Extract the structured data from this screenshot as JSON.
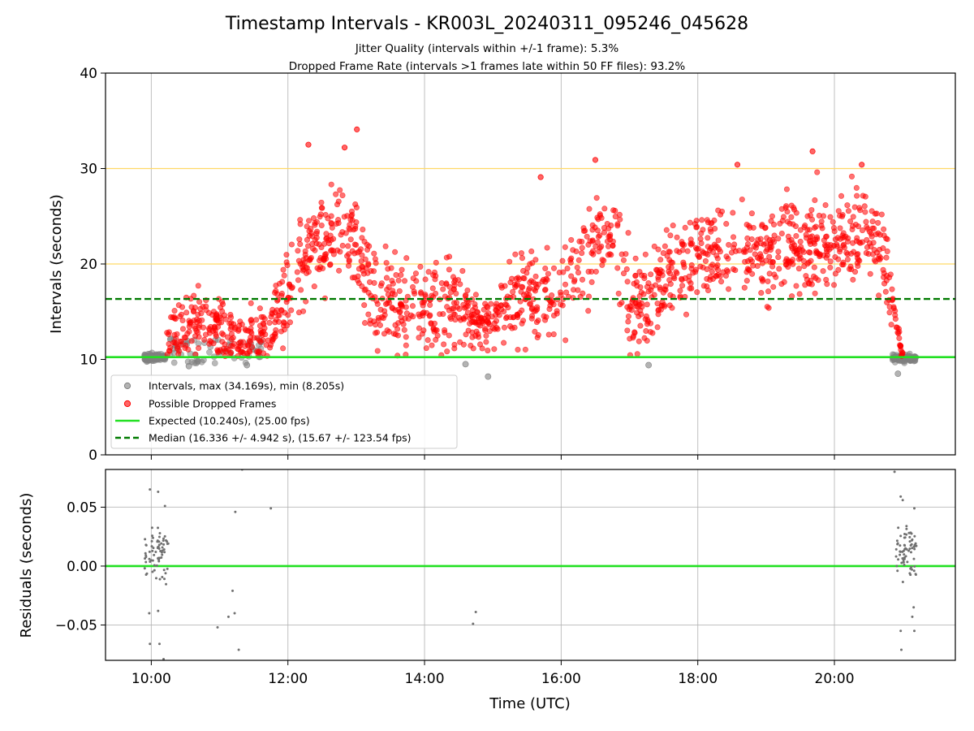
{
  "chart_data": [
    {
      "type": "scatter",
      "title": "Timestamp Intervals - KR003L_20240311_095246_045628",
      "subtitle_lines": [
        "Jitter Quality (intervals within +/-1 frame): 5.3%",
        "Dropped Frame Rate (intervals >1 frames late within 50 FF files): 93.2%"
      ],
      "xlabel": "",
      "ylabel": "Intervals (seconds)",
      "xlim_hours": [
        9.33,
        21.77
      ],
      "ylim": [
        0,
        40
      ],
      "yticks": [
        0,
        10,
        20,
        30,
        40
      ],
      "ytick_labels": [
        "0",
        "10",
        "20",
        "30",
        "40"
      ],
      "xticks_hours": [
        10,
        12,
        14,
        16,
        18,
        20
      ],
      "grid": "vertical lines at x ticks",
      "reference_lines": [
        {
          "y": 20,
          "color": "#ffd966",
          "style": "solid"
        },
        {
          "y": 30,
          "color": "#ffd966",
          "style": "solid"
        },
        {
          "y": 10.24,
          "color": "#22e022",
          "style": "solid",
          "name": "Expected (10.240s), (25.00 fps)"
        },
        {
          "y": 16.336,
          "color": "#007a00",
          "style": "dashed",
          "name": "Median (16.336 +/- 4.942 s), (15.67 +/- 123.54 fps)"
        }
      ],
      "legend": {
        "placement": "lower-left",
        "entries": [
          {
            "label": "Intervals, max (34.169s), min (8.205s)",
            "kind": "marker",
            "color": "#808080"
          },
          {
            "label": "Possible Dropped Frames",
            "kind": "marker",
            "color": "#ff0000"
          },
          {
            "label": "Expected (10.240s), (25.00 fps)",
            "kind": "line",
            "color": "#22e022"
          },
          {
            "label": "Median (16.336 +/- 4.942 s), (15.67 +/- 123.54 fps)",
            "kind": "dashed",
            "color": "#007a00"
          }
        ]
      },
      "series": [
        {
          "name": "Possible Dropped Frames",
          "color": "#ff0000",
          "trend_hours": [
            10.2,
            10.5,
            10.9,
            11.3,
            11.7,
            12.0,
            12.4,
            12.8,
            13.0,
            13.3,
            13.7,
            14.1,
            14.5,
            14.8,
            15.1,
            15.5,
            15.9,
            16.2,
            16.5,
            16.8,
            17.0,
            17.3,
            17.6,
            18.0,
            18.5,
            19.0,
            19.5,
            20.0,
            20.4,
            20.7,
            20.85,
            21.0
          ],
          "trend_values": [
            11,
            14,
            14,
            12,
            13,
            17,
            22,
            24,
            22,
            16,
            15,
            15,
            16,
            13,
            15,
            17,
            16,
            19,
            22,
            24,
            16,
            15,
            19,
            21,
            22,
            21,
            22,
            22,
            23,
            22,
            16,
            10.4
          ],
          "peaks": [
            {
              "x_hours": 13.01,
              "y": 34.1
            },
            {
              "x_hours": 12.3,
              "y": 32.5
            },
            {
              "x_hours": 12.83,
              "y": 32.2
            },
            {
              "x_hours": 16.5,
              "y": 30.9
            },
            {
              "x_hours": 19.68,
              "y": 31.8
            },
            {
              "x_hours": 20.4,
              "y": 30.4
            },
            {
              "x_hours": 18.58,
              "y": 30.4
            },
            {
              "x_hours": 15.7,
              "y": 29.1
            }
          ]
        },
        {
          "name": "Intervals, max (34.169s), min (8.205s)",
          "color": "#808080",
          "clusters": [
            {
              "from_hours": 9.9,
              "to_hours": 10.2,
              "center": 10.2
            },
            {
              "from_hours": 20.85,
              "to_hours": 21.2,
              "center": 10.1
            }
          ],
          "points": [
            {
              "x_hours": 14.93,
              "y": 8.2
            },
            {
              "x_hours": 17.28,
              "y": 9.4
            },
            {
              "x_hours": 14.6,
              "y": 9.5
            },
            {
              "x_hours": 10.55,
              "y": 9.3
            },
            {
              "x_hours": 11.4,
              "y": 9.4
            },
            {
              "x_hours": 20.93,
              "y": 8.5
            }
          ]
        }
      ]
    },
    {
      "type": "scatter",
      "title": "",
      "xlabel": "Time (UTC)",
      "ylabel": "Residuals (seconds)",
      "xlim_hours": [
        9.33,
        21.77
      ],
      "ylim": [
        -0.08,
        0.082
      ],
      "yticks": [
        0.05,
        0.0,
        -0.05
      ],
      "ytick_labels": [
        "0.05",
        "0.00",
        "−0.05"
      ],
      "xticks_hours": [
        10,
        12,
        14,
        16,
        18,
        20
      ],
      "xtick_labels": [
        "10:00",
        "12:00",
        "14:00",
        "16:00",
        "18:00",
        "20:00"
      ],
      "grid": "both axes",
      "reference_lines": [
        {
          "y": 0.0,
          "color": "#22e022",
          "style": "solid"
        }
      ],
      "series": [
        {
          "name": "",
          "color": "#707070",
          "clusters": [
            {
              "from_hours": 9.9,
              "to_hours": 10.25
            },
            {
              "from_hours": 20.9,
              "to_hours": 21.2
            }
          ],
          "points": [
            {
              "x_hours": 9.98,
              "y": 0.065
            },
            {
              "x_hours": 10.1,
              "y": 0.063
            },
            {
              "x_hours": 10.2,
              "y": 0.051
            },
            {
              "x_hours": 10.1,
              "y": -0.038
            },
            {
              "x_hours": 9.97,
              "y": -0.04
            },
            {
              "x_hours": 9.98,
              "y": -0.066
            },
            {
              "x_hours": 10.12,
              "y": -0.066
            },
            {
              "x_hours": 10.18,
              "y": -0.079
            },
            {
              "x_hours": 11.33,
              "y": 0.082
            },
            {
              "x_hours": 11.23,
              "y": 0.046
            },
            {
              "x_hours": 11.75,
              "y": 0.049
            },
            {
              "x_hours": 10.97,
              "y": -0.052
            },
            {
              "x_hours": 11.13,
              "y": -0.043
            },
            {
              "x_hours": 11.19,
              "y": -0.021
            },
            {
              "x_hours": 11.22,
              "y": -0.04
            },
            {
              "x_hours": 11.28,
              "y": -0.071
            },
            {
              "x_hours": 14.75,
              "y": -0.039
            },
            {
              "x_hours": 14.71,
              "y": -0.049
            },
            {
              "x_hours": 20.88,
              "y": 0.08
            },
            {
              "x_hours": 20.97,
              "y": 0.059
            },
            {
              "x_hours": 21.0,
              "y": 0.056
            },
            {
              "x_hours": 21.17,
              "y": 0.049
            },
            {
              "x_hours": 20.97,
              "y": -0.055
            },
            {
              "x_hours": 21.17,
              "y": -0.055
            },
            {
              "x_hours": 20.98,
              "y": -0.071
            },
            {
              "x_hours": 21.14,
              "y": -0.043
            },
            {
              "x_hours": 21.16,
              "y": -0.035
            }
          ]
        }
      ]
    }
  ]
}
